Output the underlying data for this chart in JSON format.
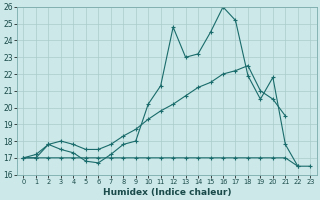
{
  "title": "",
  "xlabel": "Humidex (Indice chaleur)",
  "background_color": "#cce8e8",
  "grid_color": "#aacccc",
  "line_color": "#1a6b6b",
  "xlim": [
    -0.5,
    23.5
  ],
  "ylim": [
    16,
    26
  ],
  "xticks": [
    0,
    1,
    2,
    3,
    4,
    5,
    6,
    7,
    8,
    9,
    10,
    11,
    12,
    13,
    14,
    15,
    16,
    17,
    18,
    19,
    20,
    21,
    22,
    23
  ],
  "yticks": [
    16,
    17,
    18,
    19,
    20,
    21,
    22,
    23,
    24,
    25,
    26
  ],
  "line1_x": [
    0,
    1,
    2,
    3,
    4,
    5,
    6,
    7,
    8,
    9,
    10,
    11,
    12,
    13,
    14,
    15,
    16,
    17,
    18,
    19,
    20,
    21,
    22
  ],
  "line1_y": [
    17.0,
    17.0,
    17.8,
    17.5,
    17.3,
    16.8,
    16.7,
    17.2,
    17.8,
    18.0,
    20.2,
    21.3,
    24.8,
    23.0,
    23.2,
    24.5,
    26.0,
    25.2,
    21.9,
    20.5,
    21.8,
    17.8,
    16.5
  ],
  "line2_x": [
    0,
    1,
    2,
    3,
    4,
    5,
    6,
    7,
    8,
    9,
    10,
    11,
    12,
    13,
    14,
    15,
    16,
    17,
    18,
    19,
    20,
    21
  ],
  "line2_y": [
    17.0,
    17.2,
    17.8,
    18.0,
    17.8,
    17.5,
    17.5,
    17.8,
    18.3,
    18.7,
    19.3,
    19.8,
    20.2,
    20.7,
    21.2,
    21.5,
    22.0,
    22.2,
    22.5,
    21.0,
    20.5,
    19.5
  ],
  "line3_x": [
    0,
    1,
    2,
    3,
    4,
    5,
    6,
    7,
    8,
    9,
    10,
    11,
    12,
    13,
    14,
    15,
    16,
    17,
    18,
    19,
    20,
    21,
    22,
    23
  ],
  "line3_y": [
    17.0,
    17.0,
    17.0,
    17.0,
    17.0,
    17.0,
    17.0,
    17.0,
    17.0,
    17.0,
    17.0,
    17.0,
    17.0,
    17.0,
    17.0,
    17.0,
    17.0,
    17.0,
    17.0,
    17.0,
    17.0,
    17.0,
    16.5,
    16.5
  ]
}
